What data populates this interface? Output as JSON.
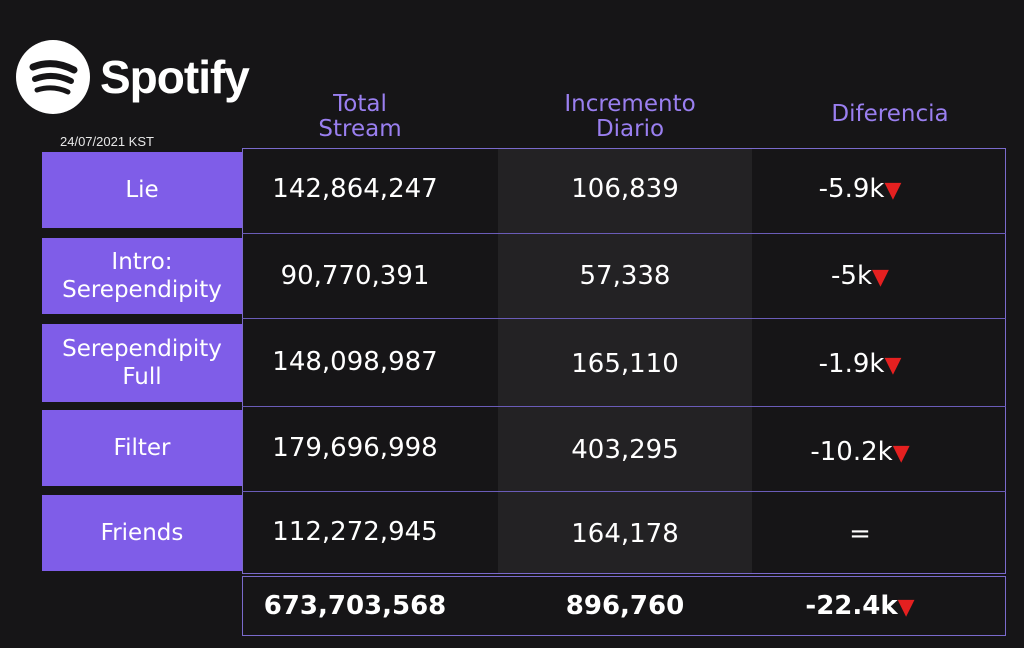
{
  "brand": {
    "name": "Spotify"
  },
  "date": "24/07/2021 KST",
  "headers": {
    "total": "Total\nStream",
    "increment": "Incremento\nDiario",
    "difference": "Diferencia"
  },
  "rows": [
    {
      "song": "Lie",
      "total": "142,864,247",
      "increment": "106,839",
      "difference": "-5.9k",
      "trend": "down"
    },
    {
      "song": "Intro:\nSerependipity",
      "total": "90,770,391",
      "increment": "57,338",
      "difference": "-5k",
      "trend": "down"
    },
    {
      "song": "Serependipity\nFull",
      "total": "148,098,987",
      "increment": "165,110",
      "difference": "-1.9k",
      "trend": "down"
    },
    {
      "song": "Filter",
      "total": "179,696,998",
      "increment": "403,295",
      "difference": "-10.2k",
      "trend": "down"
    },
    {
      "song": "Friends",
      "total": "112,272,945",
      "increment": "164,178",
      "difference": "=",
      "trend": "none"
    }
  ],
  "totals": {
    "total": "673,703,568",
    "increment": "896,760",
    "difference": "-22.4k",
    "trend": "down"
  },
  "colors": {
    "accent": "#7f5de8",
    "header": "#9a7ff0",
    "down": "#e52020"
  }
}
